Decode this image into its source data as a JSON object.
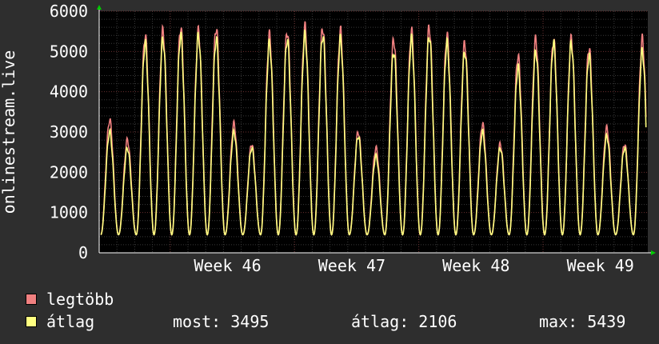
{
  "chart_data": {
    "type": "line",
    "ylabel": "onlinestream.live",
    "ylim": [
      0,
      6000
    ],
    "yticks": [
      0,
      1000,
      2000,
      3000,
      4000,
      5000,
      6000
    ],
    "xticks": [
      "Week 46",
      "Week 47",
      "Week 48",
      "Week 49"
    ],
    "grid": true,
    "series": [
      {
        "name": "legtöbb",
        "color": "#f08080",
        "daily_peaks": [
          3300,
          2800,
          5400,
          5500,
          5600,
          5500,
          5600,
          3200,
          2700,
          5400,
          5500,
          5600,
          5600,
          5500,
          3000,
          2600,
          5300,
          5500,
          5600,
          5400,
          5200,
          3200,
          2700,
          4900,
          5300,
          5300,
          5300,
          5100,
          3100,
          2700,
          5300
        ]
      },
      {
        "name": "átlag",
        "color": "#ffff80",
        "daily_peaks": [
          3000,
          2600,
          5200,
          5300,
          5400,
          5400,
          5300,
          3000,
          2600,
          5200,
          5300,
          5400,
          5400,
          5300,
          2900,
          2400,
          5000,
          5300,
          5400,
          5200,
          5000,
          3000,
          2600,
          4600,
          5000,
          5200,
          5200,
          4900,
          2900,
          2600,
          5000
        ]
      }
    ]
  },
  "legend": {
    "max_label": "legtöbb",
    "avg_label": "átlag",
    "max_color": "#f08080",
    "avg_color": "#ffff80"
  },
  "stats": {
    "now": "most: 3495",
    "avg": "átlag: 2106",
    "max": "max: 5439"
  }
}
